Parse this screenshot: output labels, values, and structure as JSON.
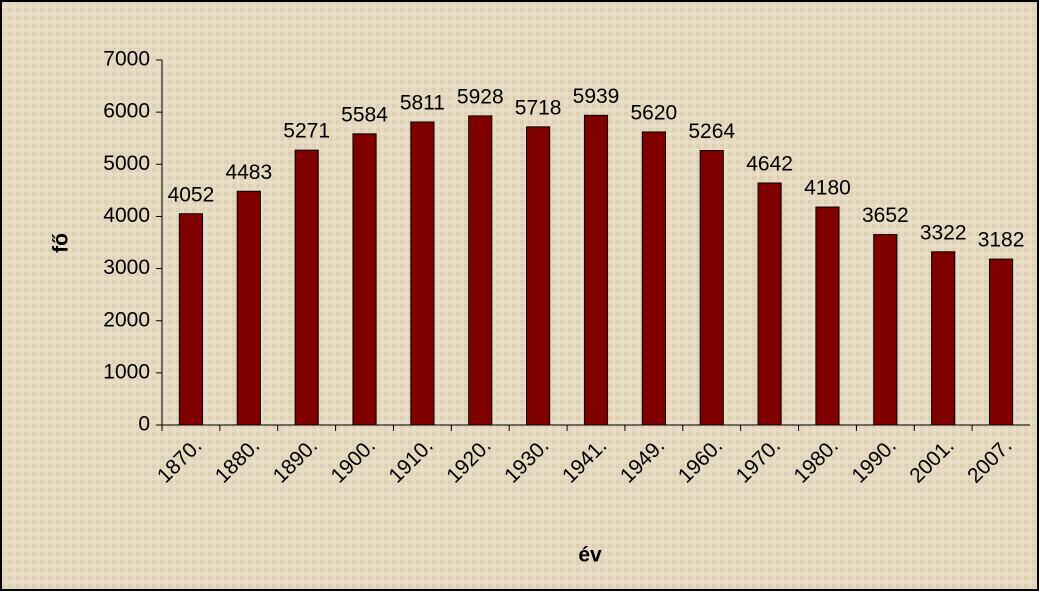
{
  "chart_data": {
    "type": "bar",
    "x_label": "év",
    "y_label": "fő",
    "categories": [
      "1870.",
      "1880.",
      "1890.",
      "1900.",
      "1910.",
      "1920.",
      "1930.",
      "1941.",
      "1949.",
      "1960.",
      "1970.",
      "1980.",
      "1990.",
      "2001.",
      "2007."
    ],
    "values": [
      4052,
      4483,
      5271,
      5584,
      5811,
      5928,
      5718,
      5939,
      5620,
      5264,
      4642,
      4180,
      3652,
      3322,
      3182
    ],
    "color": "#800000",
    "ylim": [
      0,
      7000
    ],
    "yticks": [
      0,
      1000,
      2000,
      3000,
      4000,
      5000,
      6000,
      7000
    ],
    "grid": false
  }
}
